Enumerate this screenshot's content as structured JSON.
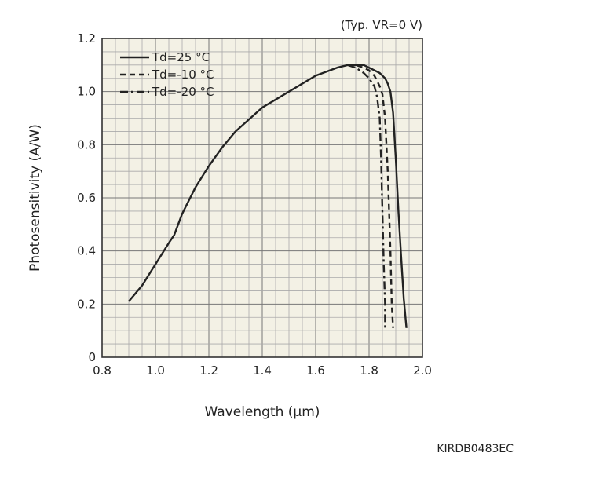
{
  "chart_data": {
    "type": "line",
    "title": "",
    "condition": "(Typ. VR=0 V)",
    "xlabel": "Wavelength (µm)",
    "ylabel": "Photosensitivity (A/W)",
    "xlim": [
      0.8,
      2.0
    ],
    "ylim": [
      0,
      1.2
    ],
    "x_ticks": [
      0.8,
      1.0,
      1.2,
      1.4,
      1.6,
      1.8,
      2.0
    ],
    "y_ticks": [
      0,
      0.2,
      0.4,
      0.6,
      0.8,
      1.0,
      1.2
    ],
    "x_tick_labels": [
      "0.8",
      "1.0",
      "1.2",
      "1.4",
      "1.6",
      "1.8",
      "2.0"
    ],
    "y_tick_labels": [
      "0",
      "0.2",
      "0.4",
      "0.6",
      "0.8",
      "1.0",
      "1.2"
    ],
    "grid": true,
    "legend_position": "top-left",
    "series": [
      {
        "name": "Td=25 °C",
        "style": "solid",
        "x": [
          0.9,
          0.95,
          1.0,
          1.05,
          1.07,
          1.1,
          1.15,
          1.2,
          1.25,
          1.3,
          1.4,
          1.5,
          1.6,
          1.68,
          1.72,
          1.75,
          1.78,
          1.8,
          1.82,
          1.84,
          1.86,
          1.87,
          1.88,
          1.89,
          1.9,
          1.91,
          1.92,
          1.93,
          1.94
        ],
        "y": [
          0.21,
          0.27,
          0.35,
          0.43,
          0.46,
          0.54,
          0.64,
          0.72,
          0.79,
          0.85,
          0.94,
          1.0,
          1.06,
          1.09,
          1.1,
          1.1,
          1.1,
          1.09,
          1.08,
          1.07,
          1.05,
          1.03,
          1.0,
          0.92,
          0.75,
          0.55,
          0.38,
          0.22,
          0.11
        ]
      },
      {
        "name": "Td=-10 °C",
        "style": "dashed",
        "x": [
          1.72,
          1.75,
          1.78,
          1.8,
          1.82,
          1.84,
          1.85,
          1.86,
          1.87,
          1.875,
          1.88,
          1.885,
          1.89
        ],
        "y": [
          1.1,
          1.1,
          1.09,
          1.08,
          1.06,
          1.02,
          0.99,
          0.9,
          0.7,
          0.55,
          0.4,
          0.2,
          0.11
        ]
      },
      {
        "name": "Td=-20 °C",
        "style": "dashdot",
        "x": [
          1.72,
          1.75,
          1.78,
          1.8,
          1.82,
          1.83,
          1.84,
          1.845,
          1.85,
          1.855,
          1.86,
          1.86
        ],
        "y": [
          1.1,
          1.09,
          1.07,
          1.05,
          1.02,
          0.98,
          0.9,
          0.75,
          0.55,
          0.35,
          0.2,
          0.11
        ]
      }
    ],
    "annotations": [
      "KIRDB0483EC"
    ]
  }
}
